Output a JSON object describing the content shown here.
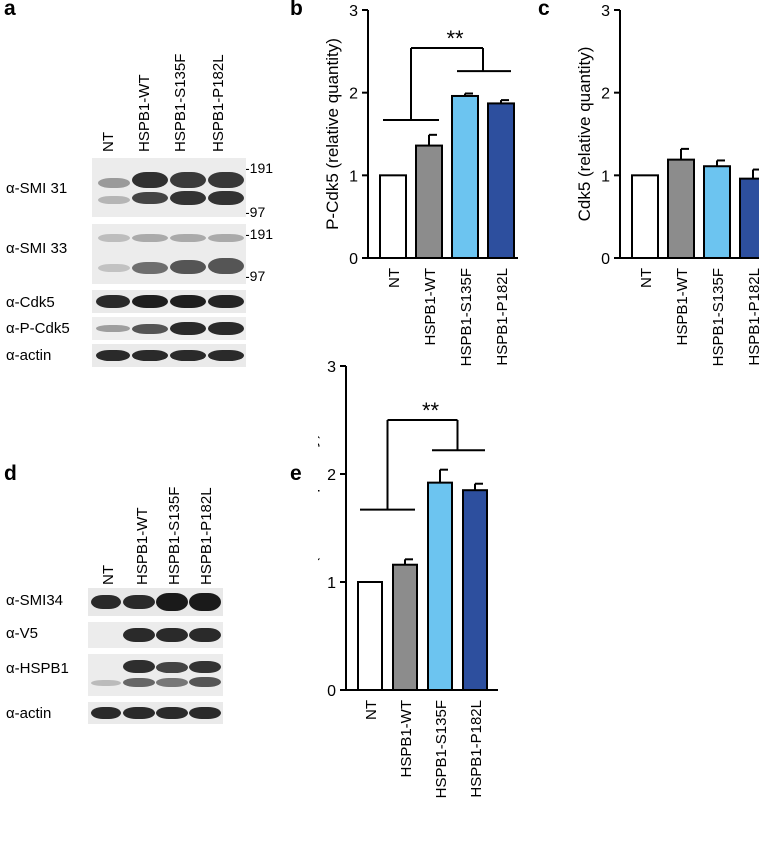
{
  "panels": {
    "a": "a",
    "b": "b",
    "c": "c",
    "d": "d",
    "e": "e"
  },
  "blot_a": {
    "lanes": [
      "NT",
      "HSPB1-WT",
      "HSPB1-S135F",
      "HSPB1-P182L"
    ],
    "rows": [
      "α-SMI 31",
      "α-SMI 33",
      "α-Cdk5",
      "α-P-Cdk5",
      "α-actin"
    ],
    "markers": {
      "smi31_top": "-191",
      "smi31_bottom": "-97",
      "smi33_top": "-191",
      "smi33_bottom": "-97"
    }
  },
  "blot_d": {
    "lanes": [
      "NT",
      "HSPB1-WT",
      "HSPB1-S135F",
      "HSPB1-P182L"
    ],
    "rows": [
      "α-SMI34",
      "α-V5",
      "α-HSPB1",
      "α-actin"
    ]
  },
  "colors": {
    "NT": "#ffffff",
    "HSPB1-WT": "#8c8c8c",
    "HSPB1-S135F": "#6cc4f0",
    "HSPB1-P182L": "#2d4f9e"
  },
  "chart_data": [
    {
      "id": "b",
      "type": "bar",
      "categories": [
        "NT",
        "HSPB1-WT",
        "HSPB1-S135F",
        "HSPB1-P182L"
      ],
      "values": [
        1.0,
        1.36,
        1.96,
        1.87
      ],
      "errors": [
        0,
        0.13,
        0.03,
        0.04
      ],
      "ylabel": "P-Cdk5 (relative quantity)",
      "ylim": [
        0,
        3
      ],
      "yticks": [
        "0",
        "1",
        "2",
        "3"
      ],
      "significance": "**"
    },
    {
      "id": "c",
      "type": "bar",
      "categories": [
        "NT",
        "HSPB1-WT",
        "HSPB1-S135F",
        "HSPB1-P182L"
      ],
      "values": [
        1.0,
        1.19,
        1.11,
        0.96
      ],
      "errors": [
        0,
        0.13,
        0.07,
        0.11
      ],
      "ylabel": "Cdk5 (relative quantity)",
      "ylim": [
        0,
        3
      ],
      "yticks": [
        "0",
        "1",
        "2",
        "3"
      ]
    },
    {
      "id": "e",
      "type": "bar",
      "categories": [
        "NT",
        "HSPB1-WT",
        "HSPB1-S135F",
        "HSPB1-P182L"
      ],
      "values": [
        1.0,
        1.16,
        1.92,
        1.85
      ],
      "errors": [
        0,
        0.05,
        0.12,
        0.06
      ],
      "ylabel": "SMI-34 (relative quantity)",
      "ylim": [
        0,
        3
      ],
      "yticks": [
        "0",
        "1",
        "2",
        "3"
      ],
      "significance": "**"
    }
  ]
}
